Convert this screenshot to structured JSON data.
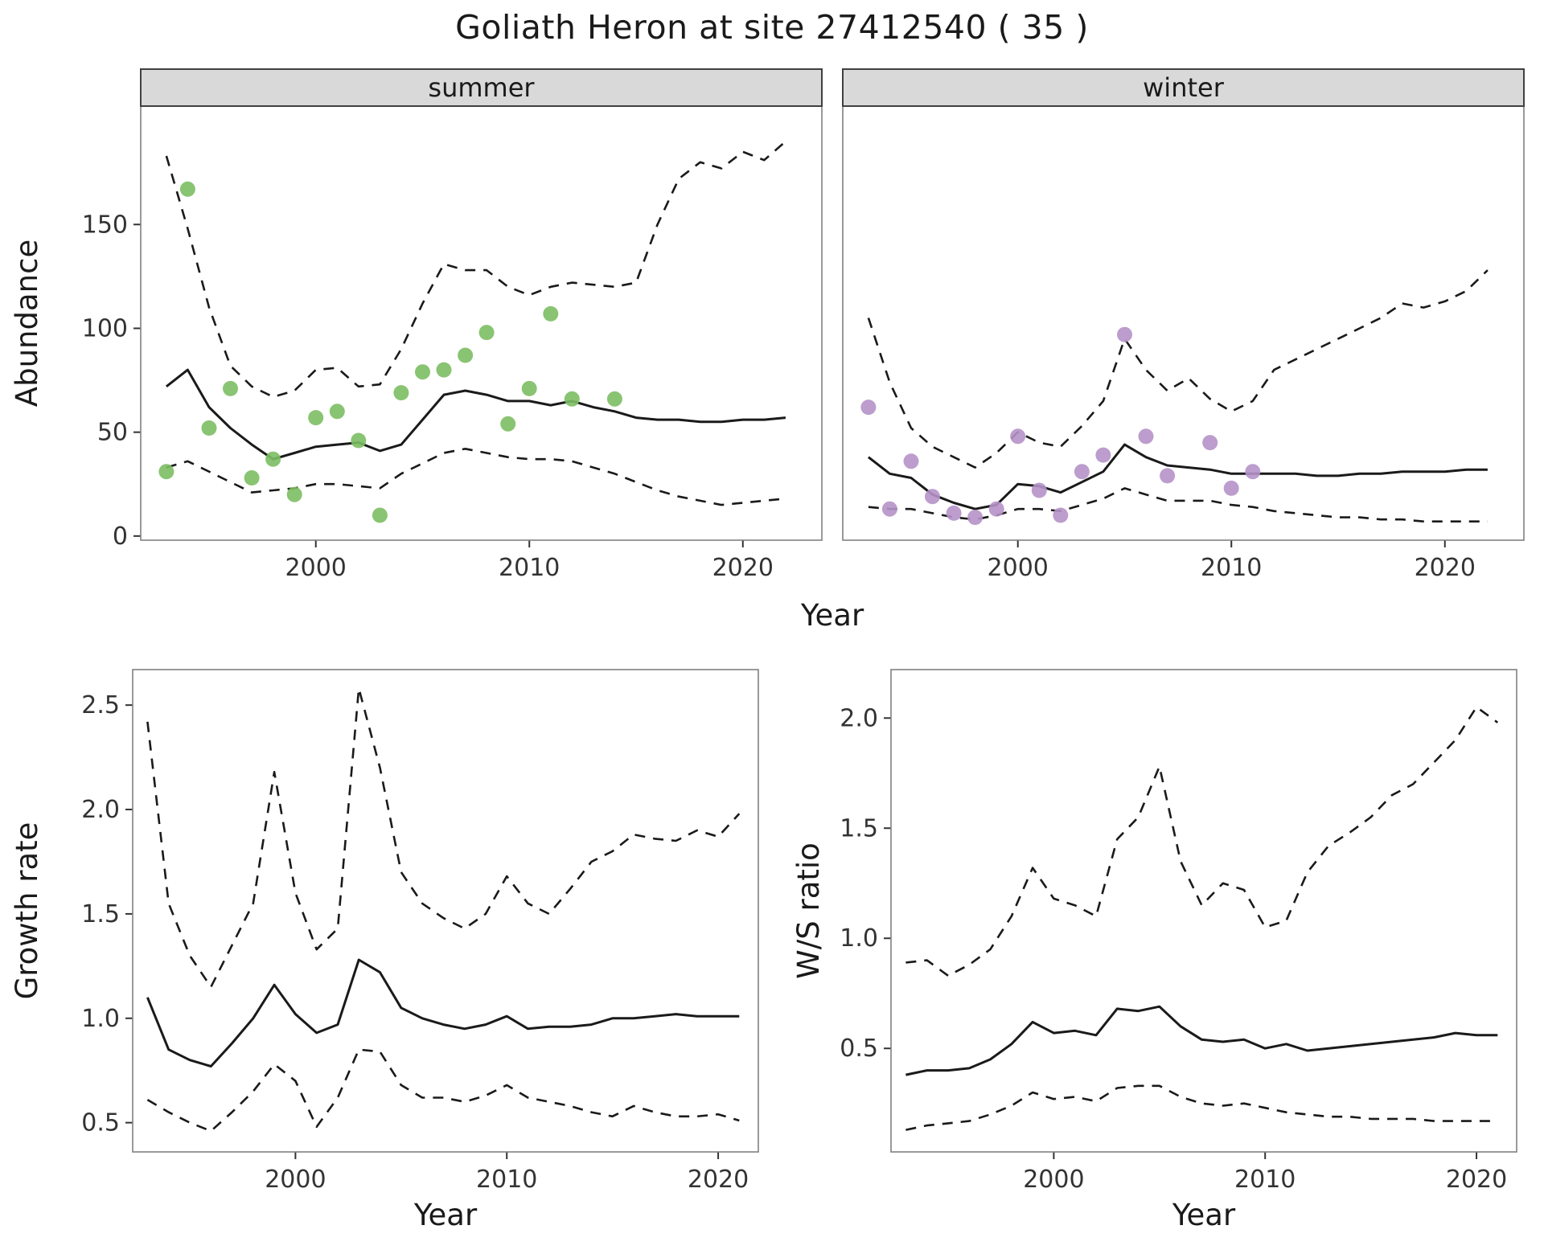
{
  "title": "Goliath Heron at site 27412540 ( 35 )",
  "theme": {
    "background": "#ffffff",
    "line_color": "#1a1a1a",
    "panel_border": "#808080",
    "strip_fill": "#d9d9d9",
    "strip_border": "#404040",
    "tick_color": "#333333",
    "tick_label_color": "#333333",
    "text_color": "#1a1a1a",
    "summer_point_color": "#7cbe63",
    "winter_point_color": "#b592c8"
  },
  "chart_data": [
    {
      "id": "abundance_summer",
      "type": "line",
      "facet_label": "summer",
      "xlabel": "Year",
      "ylabel": "Abundance",
      "xlim": [
        1991.8,
        2023.7
      ],
      "ylim": [
        -2,
        207
      ],
      "xticks": {
        "values": [
          2000,
          2010,
          2020
        ],
        "labels": [
          "2000",
          "2010",
          "2020"
        ]
      },
      "yticks": {
        "values": [
          0,
          50,
          100,
          150
        ],
        "labels": [
          "0",
          "50",
          "100",
          "150"
        ]
      },
      "x": [
        1993,
        1994,
        1995,
        1996,
        1997,
        1998,
        1999,
        2000,
        2001,
        2002,
        2003,
        2004,
        2005,
        2006,
        2007,
        2008,
        2009,
        2010,
        2011,
        2012,
        2013,
        2014,
        2015,
        2016,
        2017,
        2018,
        2019,
        2020,
        2021,
        2022
      ],
      "series": [
        {
          "name": "mean",
          "style": "solid",
          "values": [
            72,
            80,
            62,
            52,
            44,
            37,
            40,
            43,
            44,
            45,
            41,
            44,
            56,
            68,
            70,
            68,
            65,
            65,
            63,
            65,
            62,
            60,
            57,
            56,
            56,
            55,
            55,
            56,
            56,
            57
          ]
        },
        {
          "name": "upper_ci",
          "style": "dashed",
          "values": [
            183,
            148,
            110,
            82,
            72,
            67,
            70,
            80,
            81,
            72,
            73,
            90,
            112,
            131,
            128,
            128,
            120,
            116,
            120,
            122,
            121,
            120,
            122,
            150,
            172,
            180,
            177,
            185,
            181,
            190
          ]
        },
        {
          "name": "lower_ci",
          "style": "dashed",
          "values": [
            33,
            36,
            31,
            26,
            21,
            22,
            23,
            25,
            25,
            24,
            23,
            30,
            35,
            40,
            42,
            40,
            38,
            37,
            37,
            36,
            33,
            30,
            26,
            22,
            19,
            17,
            15,
            16,
            17,
            18
          ]
        }
      ],
      "points": {
        "name": "summer-observations",
        "color": "#7cbe63",
        "x": [
          1993,
          1994,
          1995,
          1996,
          1997,
          1998,
          1999,
          2000,
          2001,
          2002,
          2003,
          2004,
          2005,
          2006,
          2007,
          2008,
          2009,
          2010,
          2011,
          2012,
          2014
        ],
        "y": [
          31,
          167,
          52,
          71,
          28,
          37,
          20,
          57,
          60,
          46,
          10,
          69,
          79,
          80,
          87,
          98,
          54,
          71,
          107,
          66,
          66
        ]
      }
    },
    {
      "id": "abundance_winter",
      "type": "line",
      "facet_label": "winter",
      "xlabel": "Year",
      "ylabel": "Abundance",
      "xlim": [
        1991.8,
        2023.7
      ],
      "ylim": [
        -2,
        207
      ],
      "xticks": {
        "values": [
          2000,
          2010,
          2020
        ],
        "labels": [
          "2000",
          "2010",
          "2020"
        ]
      },
      "yticks": {
        "values": [
          0,
          50,
          100,
          150
        ],
        "labels": [
          "0",
          "50",
          "100",
          "150"
        ]
      },
      "x": [
        1993,
        1994,
        1995,
        1996,
        1997,
        1998,
        1999,
        2000,
        2001,
        2002,
        2003,
        2004,
        2005,
        2006,
        2007,
        2008,
        2009,
        2010,
        2011,
        2012,
        2013,
        2014,
        2015,
        2016,
        2017,
        2018,
        2019,
        2020,
        2021,
        2022
      ],
      "series": [
        {
          "name": "mean",
          "style": "solid",
          "values": [
            38,
            30,
            28,
            20,
            16,
            13,
            15,
            25,
            24,
            21,
            26,
            31,
            44,
            38,
            34,
            33,
            32,
            30,
            30,
            30,
            30,
            29,
            29,
            30,
            30,
            31,
            31,
            31,
            32,
            32
          ]
        },
        {
          "name": "upper_ci",
          "style": "dashed",
          "values": [
            105,
            74,
            52,
            43,
            38,
            33,
            40,
            50,
            45,
            43,
            53,
            65,
            95,
            80,
            70,
            76,
            66,
            60,
            65,
            80,
            85,
            90,
            95,
            100,
            105,
            112,
            110,
            113,
            118,
            128
          ]
        },
        {
          "name": "lower_ci",
          "style": "dashed",
          "values": [
            14,
            13,
            13,
            11,
            9,
            8,
            10,
            13,
            13,
            12,
            15,
            18,
            23,
            20,
            17,
            17,
            17,
            15,
            14,
            12,
            11,
            10,
            9,
            9,
            8,
            8,
            7,
            7,
            7,
            7
          ]
        }
      ],
      "points": {
        "name": "winter-observations",
        "color": "#b592c8",
        "x": [
          1993,
          1994,
          1995,
          1996,
          1997,
          1998,
          1999,
          2000,
          2001,
          2002,
          2003,
          2004,
          2005,
          2006,
          2007,
          2009,
          2010,
          2011
        ],
        "y": [
          62,
          13,
          36,
          19,
          11,
          9,
          13,
          48,
          22,
          10,
          31,
          39,
          97,
          48,
          29,
          45,
          23,
          31
        ]
      }
    },
    {
      "id": "growth_rate",
      "type": "line",
      "facet_label": "",
      "xlabel": "Year",
      "ylabel": "Growth rate",
      "xlim": [
        1992.3,
        2021.9
      ],
      "ylim": [
        0.36,
        2.67
      ],
      "xticks": {
        "values": [
          2000,
          2010,
          2020
        ],
        "labels": [
          "2000",
          "2010",
          "2020"
        ]
      },
      "yticks": {
        "values": [
          0.5,
          1.0,
          1.5,
          2.0,
          2.5
        ],
        "labels": [
          "0.5",
          "1.0",
          "1.5",
          "2.0",
          "2.5"
        ]
      },
      "x": [
        1993,
        1994,
        1995,
        1996,
        1997,
        1998,
        1999,
        2000,
        2001,
        2002,
        2003,
        2004,
        2005,
        2006,
        2007,
        2008,
        2009,
        2010,
        2011,
        2012,
        2013,
        2014,
        2015,
        2016,
        2017,
        2018,
        2019,
        2020,
        2021
      ],
      "series": [
        {
          "name": "mean",
          "style": "solid",
          "values": [
            1.1,
            0.85,
            0.8,
            0.77,
            0.88,
            1.0,
            1.16,
            1.02,
            0.93,
            0.97,
            1.28,
            1.22,
            1.05,
            1.0,
            0.97,
            0.95,
            0.97,
            1.01,
            0.95,
            0.96,
            0.96,
            0.97,
            1.0,
            1.0,
            1.01,
            1.02,
            1.01,
            1.01,
            1.01
          ]
        },
        {
          "name": "upper_ci",
          "style": "dashed",
          "values": [
            2.42,
            1.55,
            1.3,
            1.15,
            1.35,
            1.55,
            2.18,
            1.6,
            1.33,
            1.43,
            2.58,
            2.2,
            1.7,
            1.55,
            1.48,
            1.43,
            1.5,
            1.68,
            1.55,
            1.5,
            1.62,
            1.75,
            1.8,
            1.88,
            1.86,
            1.85,
            1.9,
            1.87,
            1.98
          ]
        },
        {
          "name": "lower_ci",
          "style": "dashed",
          "values": [
            0.61,
            0.55,
            0.5,
            0.46,
            0.55,
            0.65,
            0.78,
            0.7,
            0.48,
            0.62,
            0.85,
            0.84,
            0.68,
            0.62,
            0.62,
            0.6,
            0.63,
            0.68,
            0.62,
            0.6,
            0.58,
            0.55,
            0.53,
            0.58,
            0.55,
            0.53,
            0.53,
            0.54,
            0.51
          ]
        }
      ]
    },
    {
      "id": "ws_ratio",
      "type": "line",
      "facet_label": "",
      "xlabel": "Year",
      "ylabel": "W/S ratio",
      "xlim": [
        1992.3,
        2021.9
      ],
      "ylim": [
        0.03,
        2.22
      ],
      "xticks": {
        "values": [
          2000,
          2010,
          2020
        ],
        "labels": [
          "2000",
          "2010",
          "2020"
        ]
      },
      "yticks": {
        "values": [
          0.5,
          1.0,
          1.5,
          2.0
        ],
        "labels": [
          "0.5",
          "1.0",
          "1.5",
          "2.0"
        ]
      },
      "x": [
        1993,
        1994,
        1995,
        1996,
        1997,
        1998,
        1999,
        2000,
        2001,
        2002,
        2003,
        2004,
        2005,
        2006,
        2007,
        2008,
        2009,
        2010,
        2011,
        2012,
        2013,
        2014,
        2015,
        2016,
        2017,
        2018,
        2019,
        2020,
        2021
      ],
      "series": [
        {
          "name": "mean",
          "style": "solid",
          "values": [
            0.38,
            0.4,
            0.4,
            0.41,
            0.45,
            0.52,
            0.62,
            0.57,
            0.58,
            0.56,
            0.68,
            0.67,
            0.69,
            0.6,
            0.54,
            0.53,
            0.54,
            0.5,
            0.52,
            0.49,
            0.5,
            0.51,
            0.52,
            0.53,
            0.54,
            0.55,
            0.57,
            0.56,
            0.56
          ]
        },
        {
          "name": "upper_ci",
          "style": "dashed",
          "values": [
            0.89,
            0.9,
            0.83,
            0.88,
            0.95,
            1.1,
            1.32,
            1.18,
            1.15,
            1.1,
            1.45,
            1.55,
            1.78,
            1.35,
            1.15,
            1.25,
            1.22,
            1.05,
            1.08,
            1.3,
            1.42,
            1.48,
            1.55,
            1.65,
            1.7,
            1.8,
            1.9,
            2.05,
            1.98
          ]
        },
        {
          "name": "lower_ci",
          "style": "dashed",
          "values": [
            0.13,
            0.15,
            0.16,
            0.17,
            0.2,
            0.24,
            0.3,
            0.27,
            0.28,
            0.26,
            0.32,
            0.33,
            0.33,
            0.28,
            0.25,
            0.24,
            0.25,
            0.23,
            0.21,
            0.2,
            0.19,
            0.19,
            0.18,
            0.18,
            0.18,
            0.17,
            0.17,
            0.17,
            0.17
          ]
        }
      ]
    }
  ]
}
